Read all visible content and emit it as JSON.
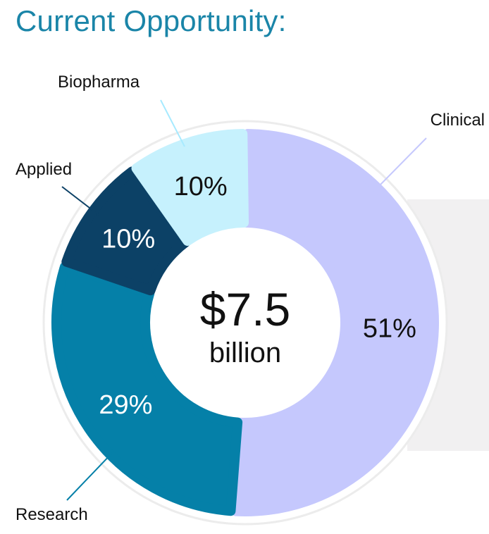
{
  "title": "Current Opportunity:",
  "chart_data": {
    "type": "pie",
    "variant": "donut",
    "center_value": "$7.5",
    "center_unit": "billion",
    "slices": [
      {
        "name": "Clinical",
        "value": 51,
        "label": "51%",
        "color": "#c5c8fd",
        "label_color": "#111111"
      },
      {
        "name": "Research",
        "value": 29,
        "label": "29%",
        "color": "#0580a8",
        "label_color": "#ffffff"
      },
      {
        "name": "Applied",
        "value": 10,
        "label": "10%",
        "color": "#0c4166",
        "label_color": "#ffffff"
      },
      {
        "name": "Biopharma",
        "value": 10,
        "label": "10%",
        "color": "#c6f1fd",
        "label_color": "#111111"
      }
    ]
  }
}
